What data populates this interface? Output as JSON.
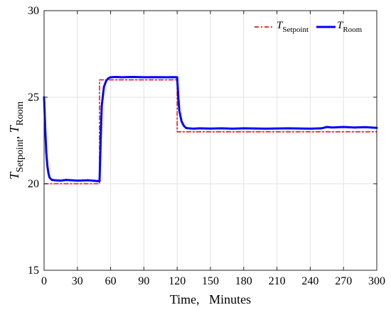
{
  "chart_data": {
    "type": "line",
    "xlabel": "Time,   Minutes",
    "ylabel_main": "T",
    "ylabel_sub1": "Setpoint",
    "ylabel_sep": ", ",
    "ylabel_sub2": "Room",
    "xlim": [
      0,
      300
    ],
    "ylim": [
      15,
      30
    ],
    "xticks": [
      0,
      30,
      60,
      90,
      120,
      150,
      180,
      210,
      240,
      270,
      300
    ],
    "yticks": [
      15,
      20,
      25,
      30
    ],
    "grid": true,
    "legend_position": "top-right",
    "series": [
      {
        "legend_main": "T",
        "legend_sub": "Setpoint",
        "color": "#e41a1c",
        "style": "dash-dot",
        "x": [
          0,
          50,
          50,
          120,
          120,
          300
        ],
        "y": [
          20,
          20,
          26,
          26,
          23,
          23
        ]
      },
      {
        "legend_main": "T",
        "legend_sub": "Room",
        "color": "#0000ff",
        "style": "solid",
        "x": [
          0,
          1,
          2,
          3,
          4,
          5,
          7,
          10,
          15,
          20,
          30,
          40,
          48,
          50,
          51,
          52,
          54,
          56,
          58,
          60,
          65,
          70,
          80,
          90,
          100,
          110,
          118,
          120,
          121,
          122,
          124,
          126,
          128,
          130,
          135,
          140,
          150,
          160,
          170,
          180,
          200,
          220,
          240,
          250,
          255,
          260,
          270,
          280,
          290,
          300
        ],
        "y": [
          25.0,
          23.2,
          21.8,
          21.0,
          20.6,
          20.35,
          20.22,
          20.2,
          20.18,
          20.22,
          20.18,
          20.2,
          20.15,
          20.15,
          22.5,
          24.5,
          25.6,
          25.95,
          26.1,
          26.15,
          26.17,
          26.15,
          26.17,
          26.15,
          26.16,
          26.15,
          26.16,
          26.15,
          25.0,
          24.2,
          23.6,
          23.35,
          23.22,
          23.2,
          23.18,
          23.2,
          23.19,
          23.2,
          23.18,
          23.2,
          23.18,
          23.2,
          23.18,
          23.2,
          23.28,
          23.25,
          23.28,
          23.25,
          23.27,
          23.23
        ]
      }
    ]
  }
}
